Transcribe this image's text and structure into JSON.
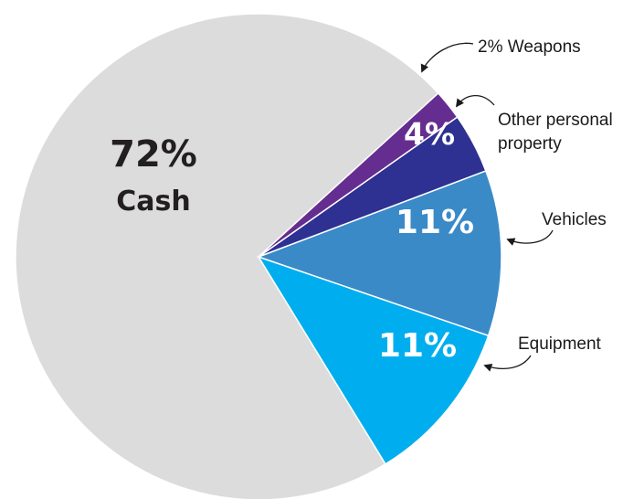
{
  "chart_data": {
    "type": "pie",
    "title": "",
    "slices": [
      {
        "id": "cash",
        "label": "Cash",
        "value": 72,
        "display": "72%",
        "color": "#dcdcdc"
      },
      {
        "id": "equipment",
        "label": "Equipment",
        "value": 11,
        "display": "11%",
        "color": "#00aeef"
      },
      {
        "id": "vehicles",
        "label": "Vehicles",
        "value": 11,
        "display": "11%",
        "color": "#3a8ac8"
      },
      {
        "id": "other",
        "label": "Other personal property",
        "label_lines": [
          "Other personal",
          "property"
        ],
        "value": 4,
        "display": "4%",
        "color": "#2e3192"
      },
      {
        "id": "weapons",
        "label": "Weapons",
        "value": 2,
        "display": "2% Weapons",
        "color": "#662d91"
      }
    ],
    "legend": "none (callout labels)",
    "text_colors": {
      "inside_dark": "#231f20",
      "inside_light": "#ffffff",
      "callout": "#1a1a1a"
    }
  }
}
